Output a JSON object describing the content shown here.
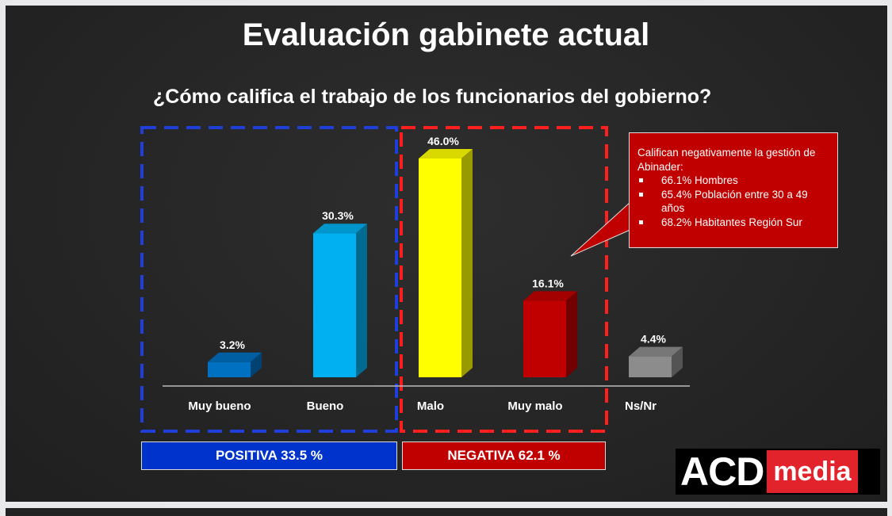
{
  "title": "Evaluación gabinete actual",
  "subtitle": "¿Cómo califica el trabajo de los funcionarios del gobierno?",
  "chart_data": {
    "type": "bar",
    "categories": [
      "Muy bueno",
      "Bueno",
      "Malo",
      "Muy malo",
      "Ns/Nr"
    ],
    "values": [
      3.2,
      30.3,
      46.0,
      16.1,
      4.4
    ],
    "data_labels": [
      "3.2%",
      "30.3%",
      "46.0%",
      "16.1%",
      "4.4%"
    ],
    "colors": [
      "#0070c0",
      "#00b0f0",
      "#ffff00",
      "#c00000",
      "#8c8c8c"
    ],
    "ylim": [
      0,
      50
    ]
  },
  "groups": {
    "positive": {
      "label": "POSITIVA 33.5 %",
      "color": "#0033cc"
    },
    "negative": {
      "label": "NEGATIVA 62.1 %",
      "color": "#c00000"
    }
  },
  "callout": {
    "intro": "Califican negativamente la gestión de Abinader:",
    "items": [
      "66.1% Hombres",
      "65.4% Población entre 30 a 49 años",
      "68.2% Habitantes Región Sur"
    ]
  },
  "logo": {
    "part1": "ACD",
    "part2": "media"
  }
}
